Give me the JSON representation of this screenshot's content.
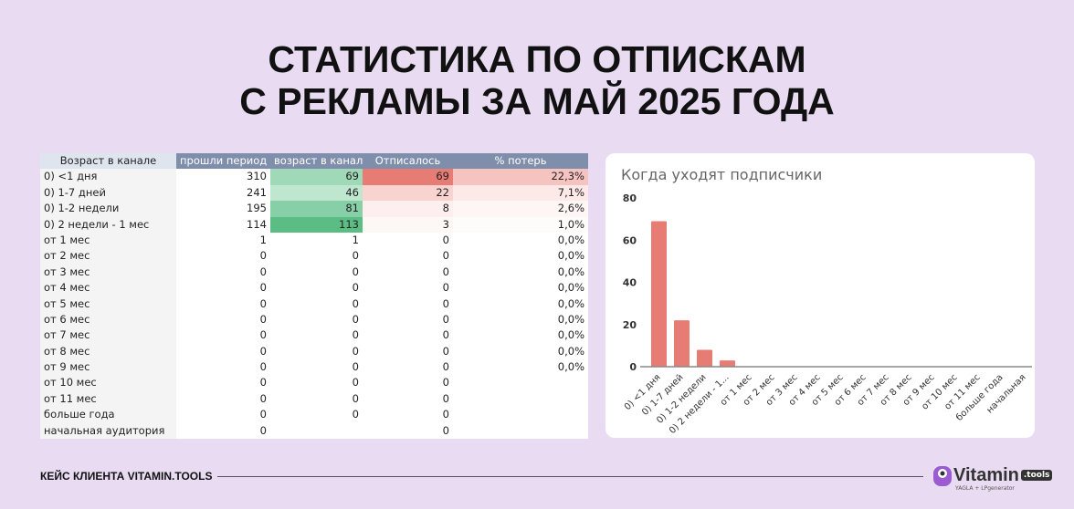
{
  "title": {
    "line1": "СТАТИСТИКА ПО ОТПИСКАМ",
    "line2": "С РЕКЛАМЫ ЗА МАЙ 2025 ГОДА"
  },
  "table": {
    "headers": [
      "Возраст в канале",
      "прошли период",
      "возраст в канале",
      "Отписалось",
      "% потерь"
    ],
    "rows": [
      [
        "0) <1 дня",
        "310",
        "69",
        "69",
        "22,3%"
      ],
      [
        "0) 1-7 дней",
        "241",
        "46",
        "22",
        "7,1%"
      ],
      [
        "0) 1-2 недели",
        "195",
        "81",
        "8",
        "2,6%"
      ],
      [
        "0) 2 недели - 1 мес",
        "114",
        "113",
        "3",
        "1,0%"
      ],
      [
        "от 1 мес",
        "1",
        "1",
        "0",
        "0,0%"
      ],
      [
        "от 2 мес",
        "0",
        "0",
        "0",
        "0,0%"
      ],
      [
        "от 3 мес",
        "0",
        "0",
        "0",
        "0,0%"
      ],
      [
        "от 4 мес",
        "0",
        "0",
        "0",
        "0,0%"
      ],
      [
        "от 5 мес",
        "0",
        "0",
        "0",
        "0,0%"
      ],
      [
        "от 6 мес",
        "0",
        "0",
        "0",
        "0,0%"
      ],
      [
        "от 7 мес",
        "0",
        "0",
        "0",
        "0,0%"
      ],
      [
        "от 8 мес",
        "0",
        "0",
        "0",
        "0,0%"
      ],
      [
        "от 9 мес",
        "0",
        "0",
        "0",
        "0,0%"
      ],
      [
        "от 10 мес",
        "0",
        "0",
        "0",
        ""
      ],
      [
        "от 11 мес",
        "0",
        "0",
        "0",
        ""
      ],
      [
        "больше года",
        "0",
        "0",
        "0",
        ""
      ],
      [
        "начальная аудитория",
        "0",
        "",
        "0",
        ""
      ]
    ],
    "col2_colors": [
      "#9fd9b7",
      "#bfe6cf",
      "#87cfa6",
      "#5bbd84",
      "",
      "",
      "",
      "",
      "",
      "",
      "",
      "",
      "",
      "",
      "",
      "",
      ""
    ],
    "col3_colors": [
      "#e67c73",
      "#f8d3d0",
      "#fcefee",
      "#fdf7f6",
      "",
      "",
      "",
      "",
      "",
      "",
      "",
      "",
      "",
      "",
      "",
      "",
      ""
    ],
    "col4_colors": [
      "#f6c4c0",
      "#fde9e8",
      "#fdf6f5",
      "#fefbfb",
      "",
      "",
      "",
      "",
      "",
      "",
      "",
      "",
      "",
      "",
      "",
      "",
      ""
    ]
  },
  "chart_data": {
    "type": "bar",
    "title": "Когда уходят подписчики",
    "categories": [
      "0) <1 дня",
      "0) 1-7 дней",
      "0) 1-2 недели",
      "0) 2 недели - 1...",
      "от 1 мес",
      "от 2 мес",
      "от 3 мес",
      "от 4 мес",
      "от 5 мес",
      "от 6 мес",
      "от 7 мес",
      "от 8 мес",
      "от 9 мес",
      "от 10 мес",
      "от 11 мес",
      "больше года",
      "начальная"
    ],
    "values": [
      69,
      22,
      8,
      3,
      0,
      0,
      0,
      0,
      0,
      0,
      0,
      0,
      0,
      0,
      0,
      0,
      0
    ],
    "yticks": [
      "0",
      "20",
      "40",
      "60",
      "80"
    ],
    "ylim": [
      0,
      80
    ],
    "bar_color": "#e67c73",
    "grid": false
  },
  "footer": {
    "text": "КЕЙС КЛИЕНТА VITAMIN.TOOLS"
  },
  "logo": {
    "name": "Vitamin",
    "badge": ".tools",
    "sub": "YAGLA + LPgenerator"
  }
}
